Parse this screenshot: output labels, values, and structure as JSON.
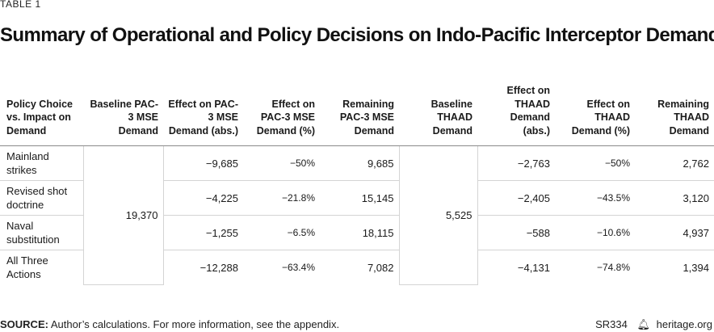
{
  "eyebrow": "TABLE 1",
  "title": "Summary of Operational and Policy Decisions on Indo-Pacific Interceptor Demand",
  "table": {
    "headers": [
      "Policy Choice vs. Impact on Demand",
      "Baseline PAC-3 MSE Demand",
      "Effect on PAC-3 MSE Demand (abs.)",
      "Effect on PAC-3 MSE Demand (%)",
      "Remaining PAC-3 MSE Demand",
      "Baseline THAAD Demand",
      "Effect on THAAD Demand (abs.)",
      "Effect on THAAD Demand (%)",
      "Remaining THAAD Demand"
    ],
    "baseline_pac3": "19,370",
    "baseline_thaad": "5,525",
    "rows": [
      {
        "label": "Mainland strikes",
        "pac_abs": "−9,685",
        "pac_pct": "−50%",
        "pac_rem": "9,685",
        "thaad_abs": "−2,763",
        "thaad_pct": "−50%",
        "thaad_rem": "2,762"
      },
      {
        "label": "Revised shot doctrine",
        "pac_abs": "−4,225",
        "pac_pct": "−21.8%",
        "pac_rem": "15,145",
        "thaad_abs": "−2,405",
        "thaad_pct": "−43.5%",
        "thaad_rem": "3,120"
      },
      {
        "label": "Naval substitution",
        "pac_abs": "−1,255",
        "pac_pct": "−6.5%",
        "pac_rem": "18,115",
        "thaad_abs": "−588",
        "thaad_pct": "−10.6%",
        "thaad_rem": "4,937"
      },
      {
        "label": "All Three Actions",
        "pac_abs": "−12,288",
        "pac_pct": "−63.4%",
        "pac_rem": "7,082",
        "thaad_abs": "−4,131",
        "thaad_pct": "−74.8%",
        "thaad_rem": "1,394"
      }
    ]
  },
  "footer": {
    "source_label": "SOURCE:",
    "source_text": " Author’s calculations. For more information, see the appendix.",
    "report_id": "SR334",
    "site": "heritage.org"
  }
}
